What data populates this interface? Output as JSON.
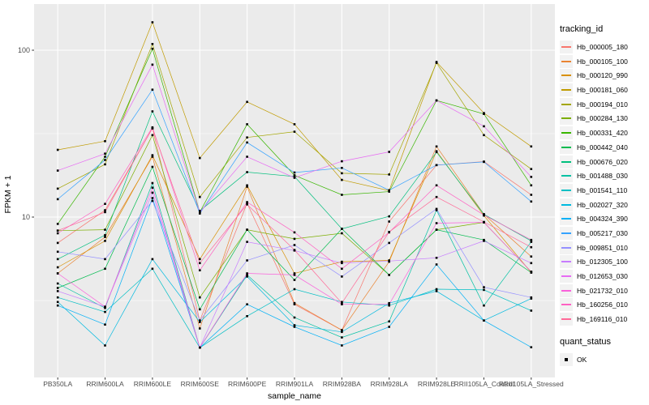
{
  "chart_data": {
    "type": "line",
    "title": "",
    "xlabel": "sample_name",
    "ylabel": "FPKM + 1",
    "y_scale": "log10",
    "y_ticks": [
      10,
      100
    ],
    "y_tick_labels": [
      "10",
      "100"
    ],
    "y_minor_ticks": [
      3.162,
      31.623
    ],
    "ylim": [
      1.1,
      185
    ],
    "grid": true,
    "legend_position": "right",
    "point_shape": "filled-square-black",
    "categories": [
      "PB350LA",
      "RRIM600LA",
      "RRIM600LE",
      "RRIM600SE",
      "RRIM600PE",
      "RRIM901LA",
      "RRIM928BA",
      "RRIM928LA",
      "RRIM928LE",
      "RRII105LA_Control",
      "RRII105LA_Stressed"
    ],
    "legend": {
      "color_title": "tracking_id",
      "shape_title": "quant_status",
      "shape_label": "OK"
    },
    "colors": {
      "panel_bg": "#EBEBEB",
      "grid": "#FFFFFF",
      "legend_key_bg": "#F2F2F2",
      "tick_text": "#4D4D4D",
      "axis_text": "#000000",
      "point": "#000000"
    },
    "series": [
      {
        "name": "Hb_000005_180",
        "color": "#F8766D",
        "values": [
          7.0,
          11.0,
          34,
          2.4,
          12.1,
          3.0,
          2.1,
          9.4,
          20.5,
          21.5,
          13.6
        ]
      },
      {
        "name": "Hb_000105_100",
        "color": "#EA8331",
        "values": [
          4.6,
          7.6,
          23,
          2.15,
          15.2,
          3.05,
          2.1,
          5.4,
          26.5,
          10.4,
          5.8
        ]
      },
      {
        "name": "Hb_000120_990",
        "color": "#D89000",
        "values": [
          5.0,
          7.2,
          23.5,
          5.6,
          15.5,
          4.6,
          5.4,
          5.5,
          24.8,
          10.2,
          4.65
        ]
      },
      {
        "name": "Hb_000181_060",
        "color": "#C09B00",
        "values": [
          25.3,
          28.5,
          147,
          22.6,
          49,
          36,
          16.7,
          14.4,
          85,
          42,
          26.5
        ]
      },
      {
        "name": "Hb_000194_010",
        "color": "#A3A500",
        "values": [
          14.8,
          20.7,
          109,
          13.2,
          30,
          32.5,
          18.3,
          18.0,
          84,
          31,
          19.4
        ]
      },
      {
        "name": "Hb_000284_130",
        "color": "#7CAE00",
        "values": [
          8.3,
          8.4,
          31,
          3.3,
          8.4,
          7.4,
          8.0,
          4.5,
          8.4,
          9.3,
          4.7
        ]
      },
      {
        "name": "Hb_000331_420",
        "color": "#39B600",
        "values": [
          9.1,
          23,
          102,
          10.7,
          36,
          17.8,
          13.6,
          14.2,
          50,
          41.5,
          15.5
        ]
      },
      {
        "name": "Hb_000442_040",
        "color": "#00BB4E",
        "values": [
          3.76,
          4.9,
          20,
          2.8,
          8.4,
          4.2,
          8.5,
          4.5,
          8.4,
          7.3,
          4.65
        ]
      },
      {
        "name": "Hb_000676_020",
        "color": "#00BF7D",
        "values": [
          5.6,
          7.8,
          43,
          10.9,
          18.6,
          17.5,
          8.5,
          10.1,
          24.5,
          10.4,
          7.2
        ]
      },
      {
        "name": "Hb_001488_030",
        "color": "#00C1A3",
        "values": [
          4.0,
          2.85,
          16,
          1.65,
          4.5,
          2.5,
          1.9,
          2.37,
          11.0,
          2.95,
          7.1
        ]
      },
      {
        "name": "Hb_001541_110",
        "color": "#00BFC4",
        "values": [
          3.3,
          2.7,
          4.9,
          1.65,
          2.55,
          3.7,
          3.1,
          2.95,
          3.7,
          3.66,
          2.75
        ]
      },
      {
        "name": "Hb_002027_320",
        "color": "#00BAE0",
        "values": [
          3.1,
          1.7,
          5.6,
          2.35,
          4.4,
          2.25,
          2.05,
          3.05,
          3.6,
          2.4,
          3.25
        ]
      },
      {
        "name": "Hb_004324_390",
        "color": "#00B0F6",
        "values": [
          2.95,
          2.27,
          13,
          1.65,
          3.0,
          2.2,
          1.7,
          2.2,
          5.2,
          2.4,
          1.66
        ]
      },
      {
        "name": "Hb_005217_030",
        "color": "#35A2FF",
        "values": [
          12.8,
          22,
          58,
          10.5,
          28,
          18.5,
          19.7,
          14.5,
          20.5,
          21.4,
          12.4
        ]
      },
      {
        "name": "Hb_009851_010",
        "color": "#9590FF",
        "values": [
          6.2,
          5.6,
          12.5,
          2.4,
          5.5,
          6.8,
          4.4,
          7.0,
          11.2,
          3.8,
          3.3
        ]
      },
      {
        "name": "Hb_012305_100",
        "color": "#C77CFF",
        "values": [
          3.6,
          2.9,
          14,
          1.65,
          7.1,
          6.3,
          5.3,
          5.45,
          5.7,
          7.2,
          5.3
        ]
      },
      {
        "name": "Hb_012653_030",
        "color": "#E76BF3",
        "values": [
          19,
          24,
          82,
          10.7,
          23,
          17.2,
          21.6,
          24.6,
          50,
          35,
          17.4
        ]
      },
      {
        "name": "Hb_021732_010",
        "color": "#FA62DB",
        "values": [
          4.6,
          2.9,
          15,
          1.65,
          4.6,
          4.5,
          3.0,
          3.0,
          9.2,
          9.3,
          4.7
        ]
      },
      {
        "name": "Hb_160256_010",
        "color": "#FF61C3",
        "values": [
          8.0,
          12,
          34.5,
          4.8,
          12.3,
          8.1,
          4.9,
          8.1,
          15.5,
          10.3,
          7.3
        ]
      },
      {
        "name": "Hb_169116_010",
        "color": "#FF6A98",
        "values": [
          8.3,
          10.7,
          34,
          5.3,
          11.9,
          6.35,
          3.05,
          8.15,
          13.2,
          9.35,
          6.6
        ]
      }
    ]
  }
}
